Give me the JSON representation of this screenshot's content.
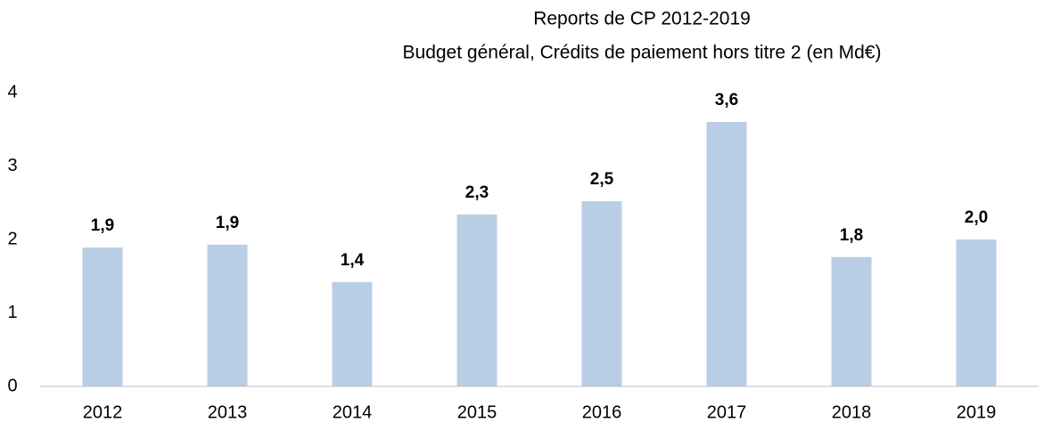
{
  "chart_data": {
    "type": "bar",
    "title": [
      "Reports de CP 2012-2019",
      "Budget général, Crédits de paiement hors titre 2 (en Md€)"
    ],
    "categories": [
      "2012",
      "2013",
      "2014",
      "2015",
      "2016",
      "2017",
      "2018",
      "2019"
    ],
    "values": [
      1.89,
      1.93,
      1.42,
      2.34,
      2.52,
      3.6,
      1.76,
      2.0
    ],
    "value_labels": [
      "1,9",
      "1,9",
      "1,4",
      "2,3",
      "2,5",
      "3,6",
      "1,8",
      "2,0"
    ],
    "color": "#b9cde5",
    "ylim": [
      0,
      4
    ],
    "yticks": [
      0,
      1,
      2,
      3,
      4
    ],
    "grid": false
  }
}
